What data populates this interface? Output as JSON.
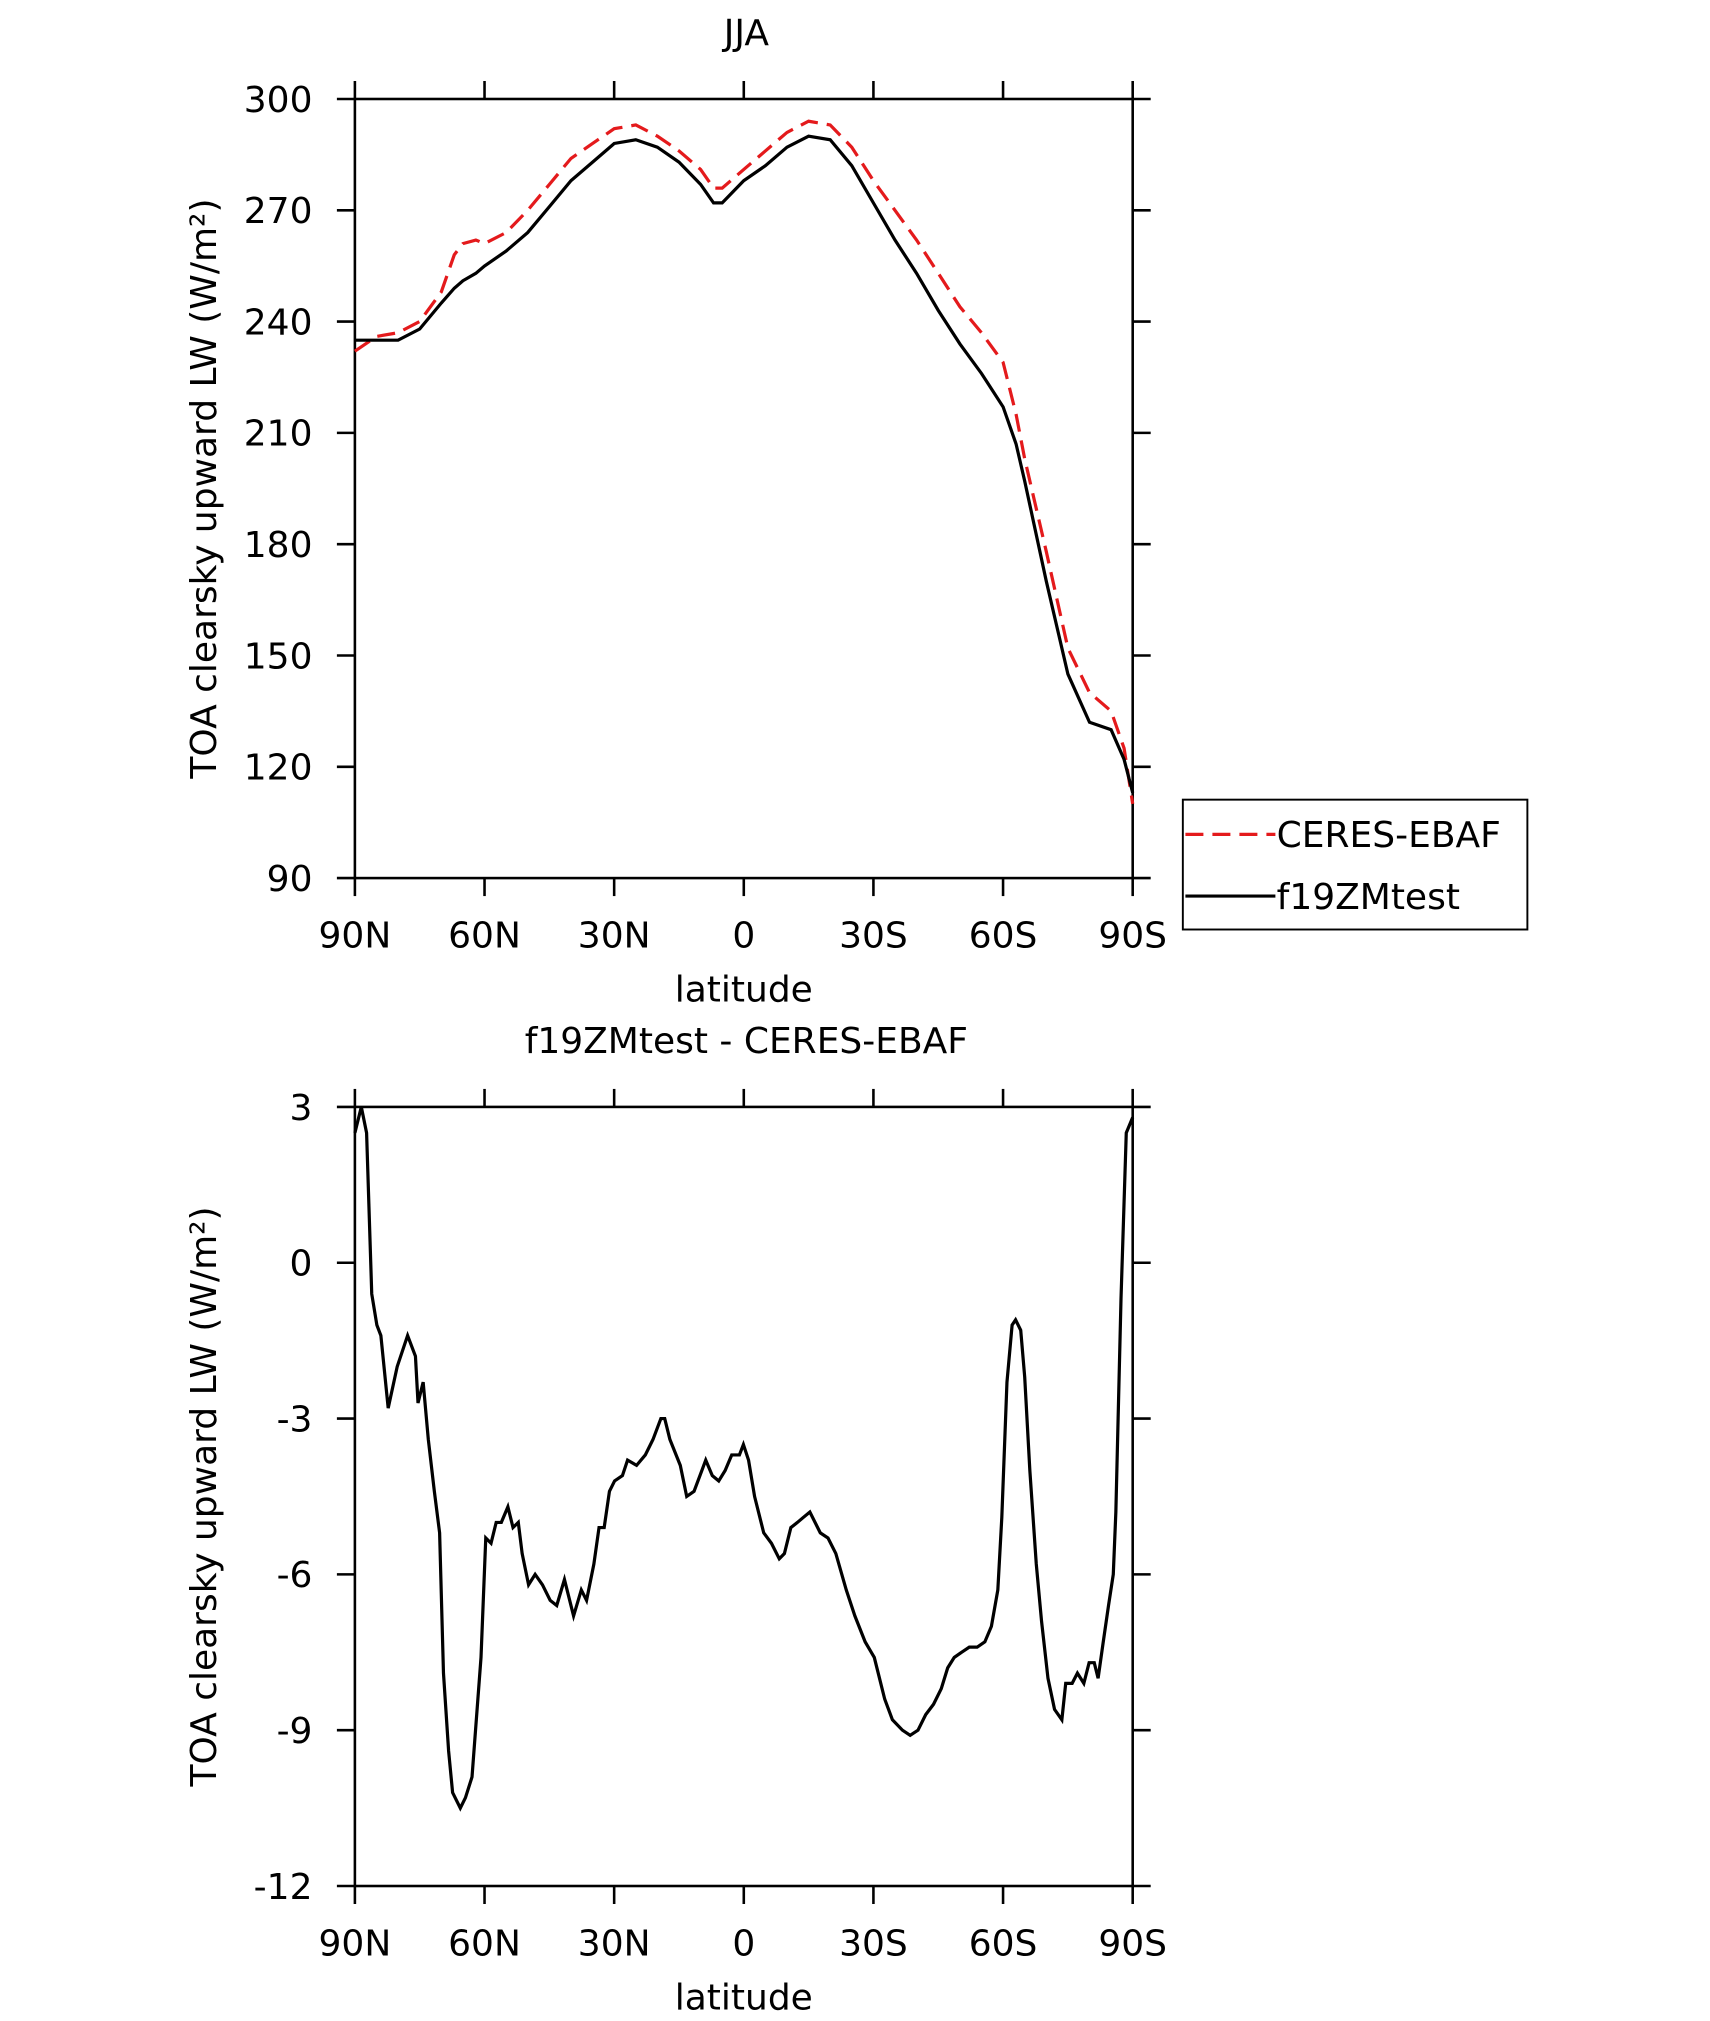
{
  "chart_data": [
    {
      "type": "line",
      "title": "JJA",
      "xlabel": "latitude",
      "ylabel": "TOA clearsky upward LW (W/m²)",
      "xlim": [
        90,
        -90
      ],
      "xticks": [
        {
          "value": 90,
          "label": "90N"
        },
        {
          "value": 60,
          "label": "60N"
        },
        {
          "value": 30,
          "label": "30N"
        },
        0,
        {
          "value": -30,
          "label": "30S"
        },
        {
          "value": -60,
          "label": "60S"
        },
        {
          "value": -90,
          "label": "90S"
        }
      ],
      "ylim": [
        90,
        300
      ],
      "yticks": [
        90,
        120,
        150,
        180,
        210,
        240,
        270,
        300
      ],
      "legend": "right",
      "x": [
        90,
        85,
        80,
        75,
        70,
        67,
        65,
        62,
        60,
        55,
        50,
        45,
        40,
        35,
        30,
        25,
        20,
        15,
        10,
        7,
        5,
        0,
        -5,
        -10,
        -15,
        -20,
        -25,
        -30,
        -35,
        -40,
        -45,
        -50,
        -55,
        -60,
        -63,
        -65,
        -70,
        -75,
        -80,
        -85,
        -88,
        -90
      ],
      "series": [
        {
          "name": "CERES-EBAF",
          "color": "#e41a1c",
          "dash": true,
          "values": [
            232,
            236,
            237,
            240,
            248,
            258,
            261,
            262,
            261,
            264,
            270,
            277,
            284,
            288,
            292,
            293,
            290,
            286,
            281,
            276,
            276,
            281,
            286,
            291,
            294,
            293,
            287,
            278,
            270,
            262,
            253,
            244,
            237,
            229,
            215,
            203,
            178,
            152,
            140,
            135,
            125,
            110
          ]
        },
        {
          "name": "f19ZMtest",
          "color": "#000000",
          "dash": false,
          "values": [
            235,
            235,
            235,
            238,
            245,
            249,
            251,
            253,
            255,
            259,
            264,
            271,
            278,
            283,
            288,
            289,
            287,
            283,
            277,
            272,
            272,
            278,
            282,
            287,
            290,
            289,
            282,
            272,
            262,
            253,
            243,
            234,
            226,
            217,
            207,
            197,
            170,
            145,
            132,
            130,
            122,
            113
          ]
        }
      ]
    },
    {
      "type": "line",
      "title": "f19ZMtest - CERES-EBAF",
      "xlabel": "latitude",
      "ylabel": "TOA clearsky upward LW (W/m²)",
      "xlim": [
        90,
        -90
      ],
      "xticks": [
        {
          "value": 90,
          "label": "90N"
        },
        {
          "value": 60,
          "label": "60N"
        },
        {
          "value": 30,
          "label": "30N"
        },
        0,
        {
          "value": -30,
          "label": "30S"
        },
        {
          "value": -60,
          "label": "60S"
        },
        {
          "value": -90,
          "label": "90S"
        }
      ],
      "ylim": [
        -12,
        3
      ],
      "yticks": [
        -12,
        -9,
        -6,
        -3,
        0,
        3
      ],
      "x": [
        90,
        88.5,
        87.3,
        86.1,
        84.9,
        84,
        82.3,
        80.2,
        77.8,
        76,
        75.4,
        74.2,
        73,
        71.6,
        70.4,
        69.5,
        68.3,
        67.4,
        65.6,
        64.4,
        62.9,
        60.8,
        59.7,
        58.5,
        57.3,
        56.1,
        54.6,
        53.4,
        52.2,
        51.3,
        49.8,
        48.3,
        46.6,
        44.8,
        43.3,
        41.5,
        39.4,
        37.6,
        36.4,
        34.7,
        33.5,
        32.3,
        31.1,
        29.9,
        28.1,
        26.9,
        24.8,
        22.8,
        21,
        19.2,
        18.3,
        17.1,
        14.7,
        13.2,
        11.5,
        9.7,
        8.8,
        7.3,
        5.8,
        4.3,
        2.8,
        1,
        0.1,
        -1.1,
        -2.5,
        -4.6,
        -6.4,
        -8.2,
        -9.4,
        -10.9,
        -12.4,
        -13.8,
        -15.3,
        -17.7,
        -19.5,
        -21.3,
        -23.7,
        -25.7,
        -28.1,
        -30.2,
        -32.6,
        -34.4,
        -36.7,
        -38.5,
        -40.3,
        -42.1,
        -43.9,
        -45.7,
        -47.2,
        -48.7,
        -50.4,
        -52.2,
        -54,
        -55.8,
        -57.3,
        -58.8,
        -59.7,
        -60.9,
        -62.1,
        -62.9,
        -64.1,
        -65,
        -66.2,
        -67.7,
        -68.9,
        -70.4,
        -71.9,
        -73.6,
        -74.5,
        -76,
        -77.2,
        -78.7,
        -79.9,
        -81.1,
        -82,
        -83.2,
        -84.4,
        -85.5,
        -86.1,
        -87.3,
        -88.5,
        -90
      ],
      "series": [
        {
          "color": "#000000",
          "dash": false,
          "values": [
            2.5,
            3.0,
            2.5,
            -0.6,
            -1.2,
            -1.4,
            -2.8,
            -2.0,
            -1.4,
            -1.8,
            -2.7,
            -2.3,
            -3.4,
            -4.4,
            -5.2,
            -7.9,
            -9.4,
            -10.2,
            -10.5,
            -10.3,
            -9.9,
            -7.6,
            -5.3,
            -5.4,
            -5.0,
            -5.0,
            -4.7,
            -5.1,
            -5.0,
            -5.6,
            -6.2,
            -6.0,
            -6.2,
            -6.5,
            -6.6,
            -6.1,
            -6.8,
            -6.3,
            -6.5,
            -5.8,
            -5.1,
            -5.1,
            -4.4,
            -4.2,
            -4.1,
            -3.8,
            -3.9,
            -3.7,
            -3.4,
            -3.0,
            -3.0,
            -3.4,
            -3.9,
            -4.5,
            -4.4,
            -4.0,
            -3.8,
            -4.1,
            -4.2,
            -4.0,
            -3.7,
            -3.7,
            -3.5,
            -3.8,
            -4.5,
            -5.2,
            -5.4,
            -5.7,
            -5.6,
            -5.1,
            -5.0,
            -4.9,
            -4.8,
            -5.2,
            -5.3,
            -5.6,
            -6.3,
            -6.8,
            -7.3,
            -7.6,
            -8.4,
            -8.8,
            -9.0,
            -9.1,
            -9.0,
            -8.7,
            -8.5,
            -8.2,
            -7.8,
            -7.6,
            -7.5,
            -7.4,
            -7.4,
            -7.3,
            -7.0,
            -6.3,
            -4.9,
            -2.3,
            -1.2,
            -1.1,
            -1.3,
            -2.2,
            -4.0,
            -5.8,
            -6.9,
            -8.0,
            -8.6,
            -8.8,
            -8.1,
            -8.1,
            -7.9,
            -8.1,
            -7.7,
            -7.7,
            -8.0,
            -7.3,
            -6.6,
            -6.0,
            -4.8,
            -0.7,
            2.5,
            2.8
          ]
        }
      ]
    }
  ]
}
